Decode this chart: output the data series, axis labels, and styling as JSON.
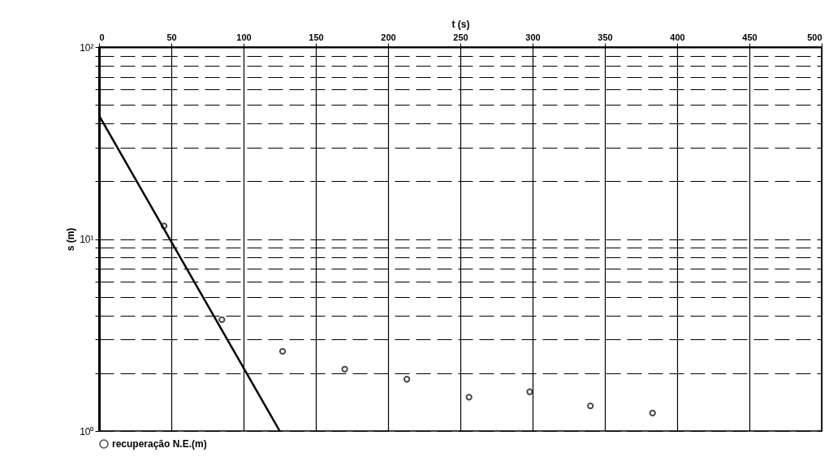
{
  "chart_data": {
    "type": "scatter",
    "xlabel": "t (s)",
    "ylabel": "s (m)",
    "log": "y",
    "xlim": [
      0,
      500
    ],
    "xticks": [
      0,
      50,
      100,
      150,
      200,
      250,
      300,
      350,
      400,
      450,
      500
    ],
    "ylim": [
      1,
      100
    ],
    "yticks": [
      {
        "value": 1,
        "label": "10⁰"
      },
      {
        "value": 2,
        "label": null
      },
      {
        "value": 3,
        "label": null
      },
      {
        "value": 4,
        "label": null
      },
      {
        "value": 5,
        "label": null
      },
      {
        "value": 6,
        "label": null
      },
      {
        "value": 7,
        "label": null
      },
      {
        "value": 8,
        "label": null
      },
      {
        "value": 9,
        "label": null
      },
      {
        "value": 10,
        "label": "10¹"
      },
      {
        "value": 20,
        "label": null
      },
      {
        "value": 30,
        "label": null
      },
      {
        "value": 40,
        "label": null
      },
      {
        "value": 50,
        "label": null
      },
      {
        "value": 60,
        "label": null
      },
      {
        "value": 70,
        "label": null
      },
      {
        "value": 80,
        "label": null
      },
      {
        "value": 90,
        "label": null
      },
      {
        "value": 100,
        "label": "10²"
      }
    ],
    "grid": true,
    "legend": "bottom left",
    "marker": "circle",
    "series": [
      {
        "type": "line",
        "marker": "none",
        "color": "#000000",
        "x": [
          0,
          125
        ],
        "values": [
          44,
          1
        ]
      },
      {
        "name": "recuperação N.E.(m)",
        "color": "#000000",
        "x": [
          45,
          85,
          127,
          170,
          213,
          256,
          298,
          340,
          383
        ],
        "values": [
          11.7,
          3.8,
          2.6,
          2.1,
          1.86,
          1.5,
          1.6,
          1.35,
          1.24
        ]
      }
    ]
  }
}
